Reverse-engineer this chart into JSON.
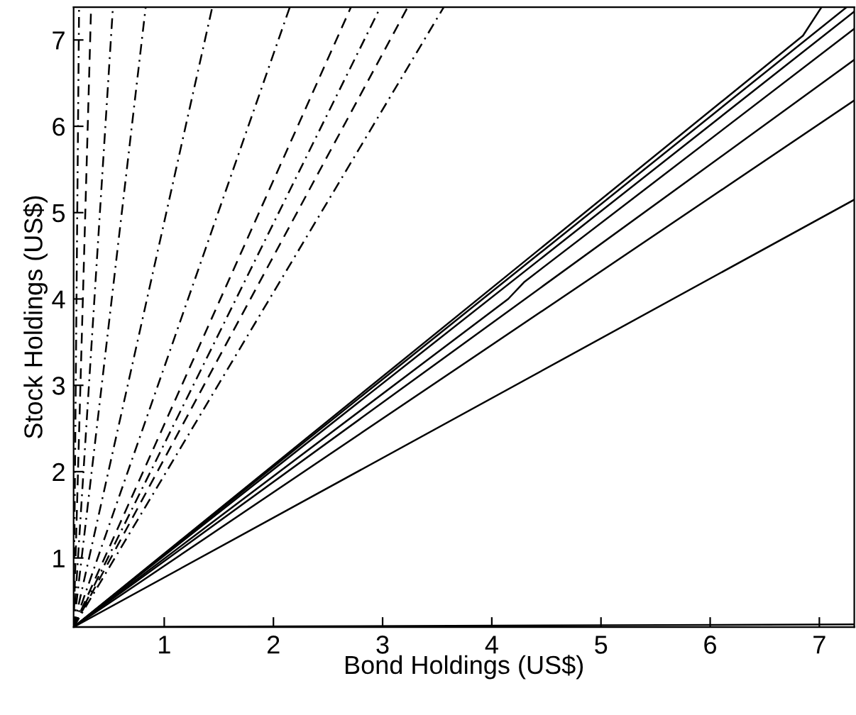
{
  "chart_data": {
    "type": "line",
    "xlabel": "Bond Holdings (US$)",
    "ylabel": "Stock Holdings (US$)",
    "xlim": [
      0.17,
      7.32
    ],
    "ylim": [
      0.2,
      7.38
    ],
    "xticks": [
      1,
      2,
      3,
      4,
      5,
      6,
      7
    ],
    "yticks": [
      1,
      2,
      3,
      4,
      5,
      6,
      7
    ],
    "grid": false,
    "legend": false,
    "marker": "none",
    "series": [
      {
        "color": "#000000",
        "line_style": "solid",
        "x": [
          0.17,
          6.85,
          7.02
        ],
        "values": [
          0.2,
          7.05,
          7.38
        ]
      },
      {
        "color": "#000000",
        "line_style": "solid",
        "x": [
          0.17,
          7.25
        ],
        "values": [
          0.2,
          7.38
        ]
      },
      {
        "color": "#000000",
        "line_style": "solid",
        "x": [
          0.17,
          7.32
        ],
        "values": [
          0.2,
          7.33
        ]
      },
      {
        "color": "#000000",
        "line_style": "solid",
        "x": [
          0.17,
          4.15,
          4.3,
          7.32
        ],
        "values": [
          0.2,
          4.0,
          4.2,
          7.13
        ]
      },
      {
        "color": "#000000",
        "line_style": "solid",
        "x": [
          0.17,
          7.32
        ],
        "values": [
          0.2,
          6.77
        ]
      },
      {
        "color": "#000000",
        "line_style": "solid",
        "x": [
          0.17,
          7.32
        ],
        "values": [
          0.2,
          6.3
        ]
      },
      {
        "color": "#000000",
        "line_style": "solid",
        "x": [
          0.17,
          7.32
        ],
        "values": [
          0.2,
          5.15
        ]
      },
      {
        "color": "#000000",
        "line_style": "solid",
        "x": [
          0.17,
          7.32
        ],
        "values": [
          0.2,
          0.23
        ]
      },
      {
        "color": "#000000",
        "line_style": "dashdot",
        "x": [
          0.17,
          0.22
        ],
        "values": [
          0.2,
          7.38
        ]
      },
      {
        "color": "#000000",
        "line_style": "dashed",
        "x": [
          0.17,
          0.33
        ],
        "values": [
          0.2,
          7.38
        ]
      },
      {
        "color": "#000000",
        "line_style": "dashdot",
        "x": [
          0.17,
          0.53
        ],
        "values": [
          0.2,
          7.38
        ]
      },
      {
        "color": "#000000",
        "line_style": "dashdot",
        "x": [
          0.17,
          0.83
        ],
        "values": [
          0.2,
          7.38
        ]
      },
      {
        "color": "#000000",
        "line_style": "dashdot",
        "x": [
          0.17,
          1.44
        ],
        "values": [
          0.2,
          7.38
        ]
      },
      {
        "color": "#000000",
        "line_style": "dashdot",
        "x": [
          0.17,
          2.15
        ],
        "values": [
          0.2,
          7.38
        ]
      },
      {
        "color": "#000000",
        "line_style": "dashed",
        "x": [
          0.17,
          2.71
        ],
        "values": [
          0.2,
          7.38
        ]
      },
      {
        "color": "#000000",
        "line_style": "dashdot",
        "x": [
          0.17,
          2.98
        ],
        "values": [
          0.2,
          7.38
        ]
      },
      {
        "color": "#000000",
        "line_style": "dashed",
        "x": [
          0.17,
          3.23
        ],
        "values": [
          0.2,
          7.38
        ]
      },
      {
        "color": "#000000",
        "line_style": "dashdot",
        "x": [
          0.17,
          3.56
        ],
        "values": [
          0.2,
          7.38
        ]
      }
    ]
  }
}
